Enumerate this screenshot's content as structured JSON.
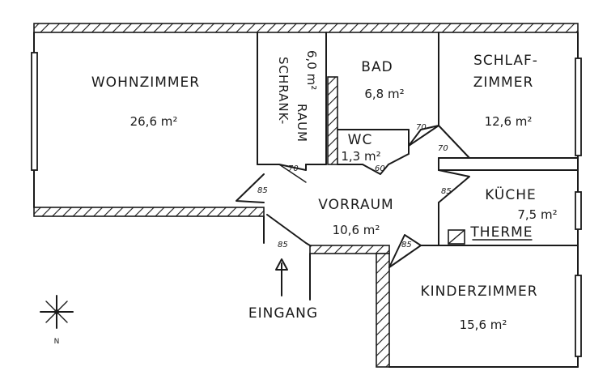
{
  "rooms": {
    "wohnzimmer": {
      "name": "WOHNZIMMER",
      "area": "26,6 m²"
    },
    "schrankraum": {
      "name_line1": "SCHRANK-",
      "name_line2": "RAUM",
      "area": "6,0 m²"
    },
    "bad": {
      "name": "BAD",
      "area": "6,8 m²"
    },
    "schlafzimmer": {
      "name_line1": "SCHLAF-",
      "name_line2": "ZIMMER",
      "area": "12,6 m²"
    },
    "wc": {
      "name": "WC",
      "area": "1,3 m²"
    },
    "vorraum": {
      "name": "VORRAUM",
      "area": "10,6 m²"
    },
    "kueche": {
      "name": "KÜCHE",
      "area": "7,5 m²"
    },
    "therme": {
      "name": "THERME"
    },
    "kinderzimmer": {
      "name": "KINDERZIMMER",
      "area": "15,6 m²"
    }
  },
  "door_widths": {
    "schrankraum": "70",
    "wc": "60",
    "bad": "70",
    "schlafzimmer": "70",
    "wohnzimmer": "85",
    "kueche": "85",
    "entrance": "85",
    "kinderzimmer": "85"
  },
  "entrance": {
    "label": "EINGANG"
  },
  "compass": {
    "label": "N"
  }
}
